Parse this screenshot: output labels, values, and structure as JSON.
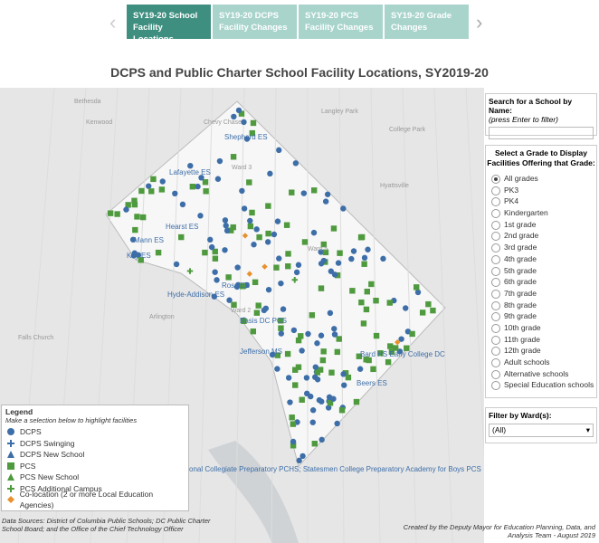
{
  "tabs": [
    "SY19-20 School Facility Locations",
    "SY19-20 DCPS Facility Changes",
    "SY19-20 PCS Facility Changes",
    "SY19-20 Grade Changes"
  ],
  "title": "DCPS and Public Charter School Facility Locations, SY2019-20",
  "search": {
    "label": "Search for a School by Name:",
    "hint": "(press Enter to filter)"
  },
  "grade_filter": {
    "title": "Select a Grade to Display Facilities Offering that Grade:",
    "options": [
      "All grades",
      "PK3",
      "PK4",
      "Kindergarten",
      "1st grade",
      "2nd grade",
      "3rd grade",
      "4th grade",
      "5th grade",
      "6th grade",
      "7th grade",
      "8th grade",
      "9th grade",
      "10th grade",
      "11th grade",
      "12th grade",
      "Adult schools",
      "Alternative schools",
      "Special Education schools"
    ]
  },
  "ward_filter": {
    "label": "Filter by Ward(s):",
    "value": "(All)"
  },
  "legend": {
    "title": "Legend",
    "subtitle": "Make a selection below to highlight facilities",
    "items": [
      {
        "label": "DCPS",
        "shape": "circle",
        "color": "#3d6ea8"
      },
      {
        "label": "DCPS Swinging",
        "shape": "plus",
        "color": "#3d6ea8"
      },
      {
        "label": "DCPS New School",
        "shape": "triangle",
        "color": "#3d6ea8"
      },
      {
        "label": "PCS",
        "shape": "square",
        "color": "#4f9a3e"
      },
      {
        "label": "PCS New School",
        "shape": "triangle",
        "color": "#4f9a3e"
      },
      {
        "label": "PCS Additional Campus",
        "shape": "plus",
        "color": "#4f9a3e"
      },
      {
        "label": "Co-location (2 or more Local Education Agencies)",
        "shape": "diamond",
        "color": "#e8912d"
      }
    ]
  },
  "map_labels": {
    "schools": [
      "Shepherd ES",
      "Lafayette ES",
      "Hearst ES",
      "Mann ES",
      "Key ES",
      "Hyde-Addison ES",
      "Ross ES",
      "Basis DC PCS",
      "Jefferson MS",
      "Bard HS Early College DC",
      "Beers ES",
      "tional Collegiate Preparatory PCHS; Statesmen College Preparatory Academy for Boys PCS"
    ],
    "places": [
      "Bethesda",
      "Chevy Chase",
      "Kenwood",
      "Langley Park",
      "College Park",
      "Hyattsville",
      "Arlington",
      "Falls Church",
      "Ward 3",
      "Ward 5",
      "Ward 2"
    ]
  },
  "footer": {
    "sources": "Data Sources: District of Columbia Public Schools; DC Public Charter School Board; and the Office of the Chief Technology Officer",
    "credit": "Created by the Deputy Mayor for Education Planning, Data, and Analysis Team - August 2019"
  }
}
